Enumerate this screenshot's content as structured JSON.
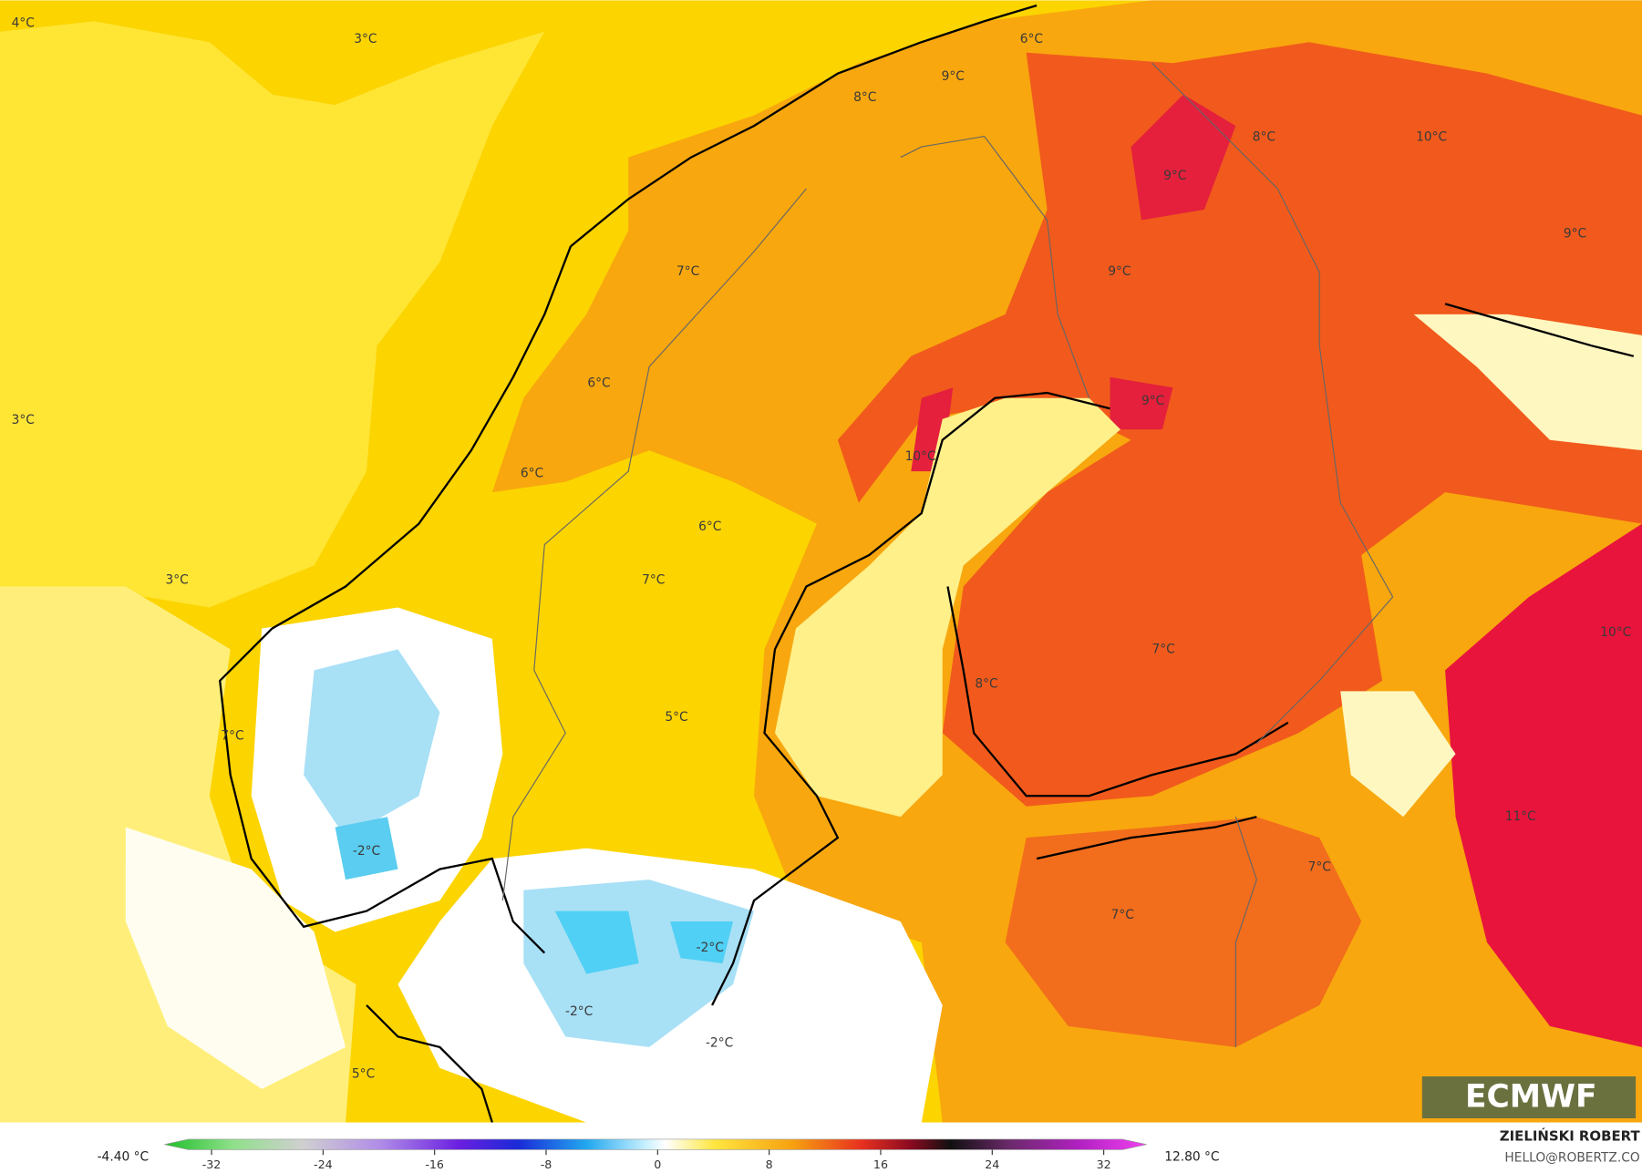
{
  "map": {
    "labels": [
      "4°C",
      "3°C",
      "3°C",
      "3°C",
      "6°C",
      "9°C",
      "8°C",
      "8°C",
      "10°C",
      "9°C",
      "9°C",
      "9°C",
      "7°C",
      "6°C",
      "9°C",
      "10°C",
      "6°C",
      "6°C",
      "7°C",
      "10°C",
      "7°C",
      "8°C",
      "5°C",
      "7°C",
      "11°C",
      "-2°C",
      "7°C",
      "7°C",
      "-2°C",
      "-2°C",
      "-2°C",
      "5°C"
    ],
    "logo": "ECMWF"
  },
  "colorbar": {
    "min_label": "-4.40 °C",
    "max_label": "12.80 °C",
    "ticks": [
      -32,
      -24,
      -16,
      -8,
      0,
      8,
      16,
      24,
      32
    ]
  },
  "credits": {
    "name": "ZIELIŃSKI ROBERT",
    "email": "HELLO@ROBERTZ.CO"
  }
}
